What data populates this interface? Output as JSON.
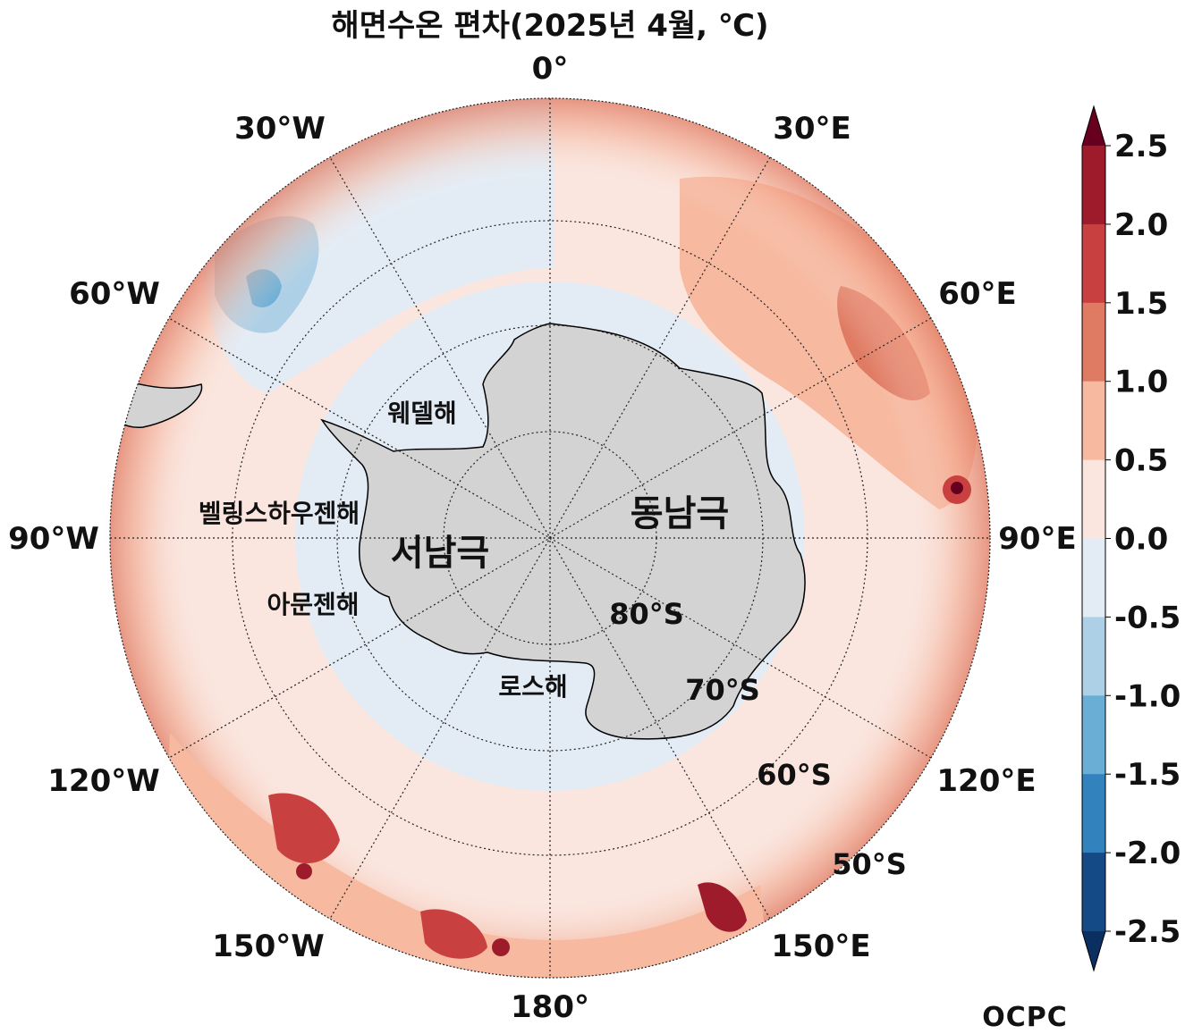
{
  "title": "해면수온 편차(2025년 4월, ℃)",
  "longitude_labels": {
    "lon_0": "0°",
    "lon_30e": "30°E",
    "lon_60e": "60°E",
    "lon_90e": "90°E",
    "lon_120e": "120°E",
    "lon_150e": "150°E",
    "lon_180": "180°",
    "lon_150w": "150°W",
    "lon_120w": "120°W",
    "lon_90w": "90°W",
    "lon_60w": "60°W",
    "lon_30w": "30°W"
  },
  "latitude_labels": {
    "lat_80s": "80°S",
    "lat_70s": "70°S",
    "lat_60s": "60°S",
    "lat_50s": "50°S"
  },
  "region_labels": {
    "east_antarctica": "동남극",
    "west_antarctica": "서남극",
    "weddell_sea": "웨델해",
    "bellingshausen_sea": "벨링스하우젠해",
    "amundsen_sea": "아문젠해",
    "ross_sea": "로스해"
  },
  "colorbar": {
    "ticks": [
      "2.5",
      "2.0",
      "1.5",
      "1.0",
      "0.5",
      "0.0",
      "-0.5",
      "-1.0",
      "-1.5",
      "-2.0",
      "-2.5"
    ],
    "colors": [
      "#67001f",
      "#9e1b2c",
      "#c94040",
      "#e07b63",
      "#f7b9a0",
      "#fae6df",
      "#e3ecf5",
      "#aed0e6",
      "#6aaed6",
      "#3182bd",
      "#144a86",
      "#0b2f61"
    ]
  },
  "colors": {
    "land": "#d3d3d3",
    "ocean_mid_latitude": "#fae6df",
    "ocean_near_coast": "#e3ecf5"
  },
  "logo_text": "OCPC"
}
